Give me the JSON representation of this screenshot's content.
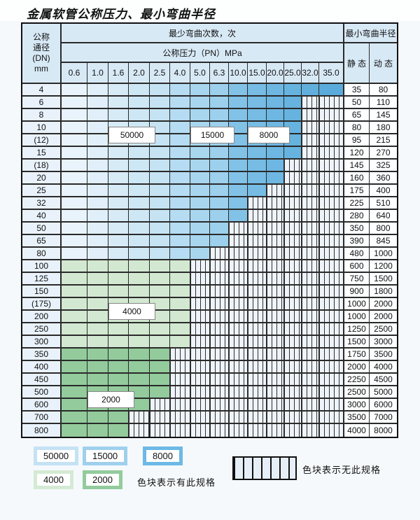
{
  "title": "金属软管公称压力、最小弯曲半径",
  "table": {
    "header": {
      "dn_lines": [
        "公称",
        "通径",
        "(DN)",
        "mm"
      ],
      "bend_cycles": "最少弯曲次数，次",
      "pressure": "公称压力（PN）MPa",
      "min_radius": "最小弯曲半径",
      "static_label": "静 态",
      "dynamic_label": "动 态",
      "pn_columns": [
        "0.6",
        "1.0",
        "1.6",
        "2.0",
        "2.5",
        "4.0",
        "5.0",
        "6.3",
        "10.0",
        "15.0",
        "20.0",
        "25.0",
        "32.0",
        "35.0"
      ]
    },
    "colors": {
      "blue_cols": [
        "#e9f3fb",
        "#e0eff9",
        "#d7ebf7",
        "#cee7f5",
        "#c5e3f3",
        "#b5dcf2",
        "#a9d6ef",
        "#9dd0ec",
        "#82c2e7",
        "#76bce4",
        "#6db7e2",
        "#66b3df",
        "#60afdd",
        "#5aabdb"
      ],
      "green_4000": "#d2e8d1",
      "green_2000": "#93cb9c",
      "header_bg": "#d8e9f6",
      "hatch_bg": "#eef4fa",
      "hatch_line": "#2f2f2f",
      "legend_50000": "#c5e2f4",
      "legend_15000": "#9ed0ee",
      "legend_8000": "#6cb9e5",
      "legend_4000": "#d4ead4",
      "legend_2000": "#93cb9c"
    },
    "rows": [
      {
        "dn": "4",
        "last_col": 13,
        "band": "blue",
        "static": "35",
        "dynamic": "80"
      },
      {
        "dn": "6",
        "last_col": 11,
        "band": "blue",
        "static": "50",
        "dynamic": "110"
      },
      {
        "dn": "8",
        "last_col": 11,
        "band": "blue",
        "static": "65",
        "dynamic": "145"
      },
      {
        "dn": "10",
        "last_col": 11,
        "band": "blue",
        "static": "80",
        "dynamic": "180"
      },
      {
        "dn": "(12)",
        "last_col": 11,
        "band": "blue",
        "static": "95",
        "dynamic": "215"
      },
      {
        "dn": "15",
        "last_col": 11,
        "band": "blue",
        "static": "120",
        "dynamic": "270"
      },
      {
        "dn": "(18)",
        "last_col": 10,
        "band": "blue",
        "static": "145",
        "dynamic": "325"
      },
      {
        "dn": "20",
        "last_col": 10,
        "band": "blue",
        "static": "160",
        "dynamic": "360"
      },
      {
        "dn": "25",
        "last_col": 9,
        "band": "blue",
        "static": "175",
        "dynamic": "400"
      },
      {
        "dn": "32",
        "last_col": 8,
        "band": "blue",
        "static": "225",
        "dynamic": "510"
      },
      {
        "dn": "40",
        "last_col": 8,
        "band": "blue",
        "static": "280",
        "dynamic": "640"
      },
      {
        "dn": "50",
        "last_col": 7,
        "band": "blue",
        "static": "350",
        "dynamic": "800"
      },
      {
        "dn": "65",
        "last_col": 7,
        "band": "blue",
        "static": "390",
        "dynamic": "845"
      },
      {
        "dn": "80",
        "last_col": 6,
        "band": "blue",
        "static": "480",
        "dynamic": "1000"
      },
      {
        "dn": "100",
        "last_col": 5,
        "band": "green_4000",
        "static": "600",
        "dynamic": "1200"
      },
      {
        "dn": "125",
        "last_col": 5,
        "band": "green_4000",
        "static": "750",
        "dynamic": "1500"
      },
      {
        "dn": "150",
        "last_col": 5,
        "band": "green_4000",
        "static": "900",
        "dynamic": "1800"
      },
      {
        "dn": "(175)",
        "last_col": 5,
        "band": "green_4000",
        "static": "1000",
        "dynamic": "2000"
      },
      {
        "dn": "200",
        "last_col": 5,
        "band": "green_4000",
        "static": "1000",
        "dynamic": "2000"
      },
      {
        "dn": "250",
        "last_col": 5,
        "band": "green_4000",
        "static": "1250",
        "dynamic": "2500"
      },
      {
        "dn": "300",
        "last_col": 5,
        "band": "green_4000",
        "static": "1500",
        "dynamic": "3000"
      },
      {
        "dn": "350",
        "last_col": 4,
        "band": "green_2000",
        "static": "1750",
        "dynamic": "3500"
      },
      {
        "dn": "400",
        "last_col": 4,
        "band": "green_2000",
        "static": "2000",
        "dynamic": "4000"
      },
      {
        "dn": "450",
        "last_col": 4,
        "band": "green_2000",
        "static": "2250",
        "dynamic": "4500"
      },
      {
        "dn": "500",
        "last_col": 4,
        "band": "green_2000",
        "static": "2500",
        "dynamic": "5000"
      },
      {
        "dn": "600",
        "last_col": 3,
        "band": "green_2000",
        "static": "3000",
        "dynamic": "6000"
      },
      {
        "dn": "700",
        "last_col": 2,
        "band": "green_2000",
        "static": "3500",
        "dynamic": "7000"
      },
      {
        "dn": "800",
        "last_col": 2,
        "band": "green_2000",
        "static": "4000",
        "dynamic": "8000"
      }
    ],
    "overlay_labels": [
      {
        "text": "50000",
        "col": 2,
        "span": 2,
        "row": 3
      },
      {
        "text": "15000",
        "col": 6,
        "span": 2,
        "row": 3
      },
      {
        "text": "8000",
        "col": 9,
        "span": 2,
        "row": 3
      },
      {
        "text": "4000",
        "col": 2,
        "span": 2,
        "row": 17
      },
      {
        "text": "2000",
        "col": 1,
        "span": 2,
        "row": 24
      }
    ]
  },
  "legend": {
    "swatches": [
      {
        "text": "50000",
        "color_key": "legend_50000"
      },
      {
        "text": "15000",
        "color_key": "legend_15000"
      },
      {
        "text": "8000",
        "color_key": "legend_8000"
      },
      {
        "text": "4000",
        "color_key": "legend_4000"
      },
      {
        "text": "2000",
        "color_key": "legend_2000"
      }
    ],
    "has_spec_text": "色块表示有此规格",
    "no_spec_text": "色块表示无此规格"
  }
}
